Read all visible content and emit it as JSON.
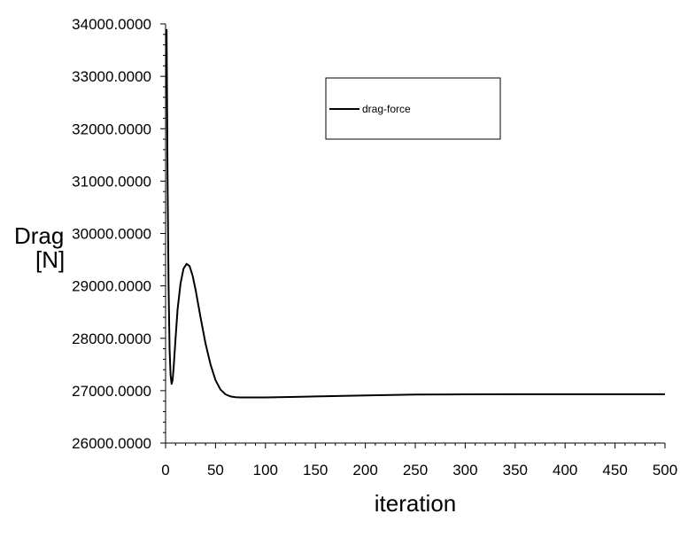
{
  "chart_data": {
    "type": "line",
    "xlabel": "iteration",
    "ylabel_lines": [
      "Drag",
      "[N]"
    ],
    "xlim": [
      0,
      500
    ],
    "ylim": [
      26000,
      34000
    ],
    "x_ticks": [
      "0",
      "50",
      "100",
      "150",
      "200",
      "250",
      "300",
      "350",
      "400",
      "450",
      "500"
    ],
    "y_ticks": [
      "26000.0000",
      "27000.0000",
      "28000.0000",
      "29000.0000",
      "30000.0000",
      "31000.0000",
      "32000.0000",
      "33000.0000",
      "34000.0000"
    ],
    "grid": false,
    "legend_position": "top-center",
    "series": [
      {
        "name": "drag-force",
        "color": "#000000",
        "x": [
          1,
          2,
          3,
          4,
          5,
          6,
          7,
          8,
          10,
          12,
          15,
          18,
          21,
          24,
          27,
          30,
          35,
          40,
          45,
          50,
          55,
          60,
          65,
          70,
          75,
          80,
          90,
          100,
          125,
          150,
          200,
          250,
          300,
          350,
          400,
          450,
          500
        ],
        "y": [
          33900,
          31000,
          29000,
          27800,
          27300,
          27130,
          27200,
          27420,
          28000,
          28550,
          29050,
          29330,
          29420,
          29380,
          29200,
          28930,
          28400,
          27900,
          27500,
          27200,
          27020,
          26930,
          26890,
          26875,
          26870,
          26870,
          26870,
          26872,
          26880,
          26890,
          26910,
          26925,
          26930,
          26932,
          26933,
          26933,
          26933
        ]
      }
    ]
  }
}
